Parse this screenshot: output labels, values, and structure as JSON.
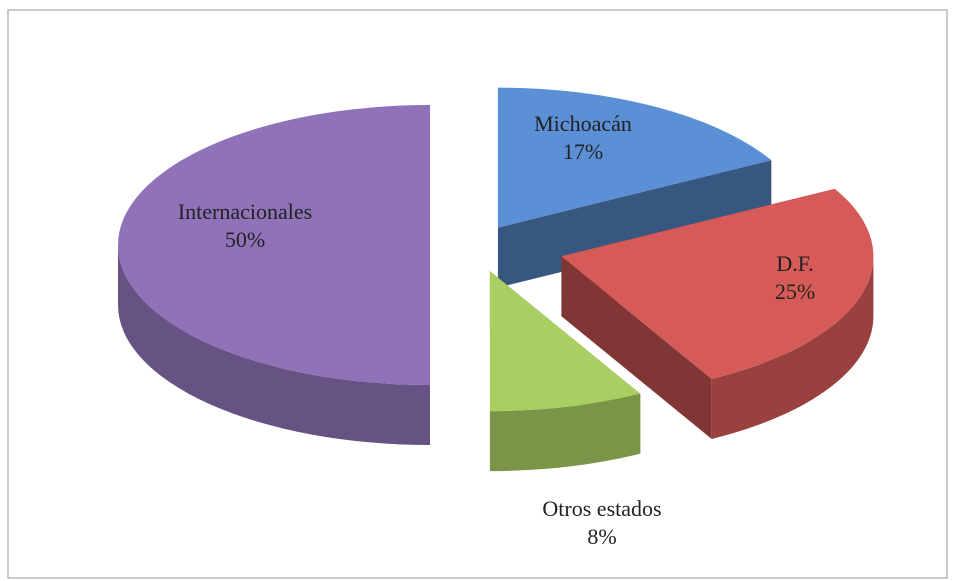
{
  "chart_data": {
    "type": "pie3d",
    "categories": [
      "Michoacán",
      "D.F.",
      "Otros estados",
      "Internacionales"
    ],
    "values": [
      17,
      25,
      8,
      50
    ],
    "value_labels": [
      "17%",
      "25%",
      "8%",
      "50%"
    ],
    "colors": [
      "#5b8fd6",
      "#d65a57",
      "#a9cf62",
      "#8f72b8"
    ]
  }
}
